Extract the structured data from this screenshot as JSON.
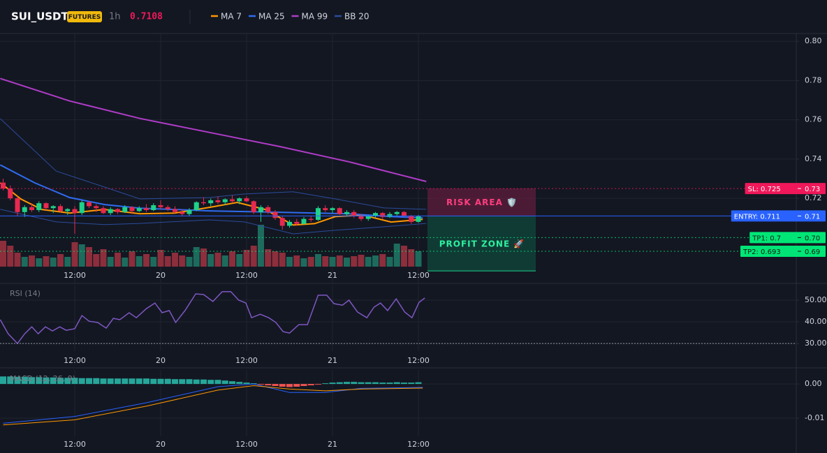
{
  "header": {
    "symbol": "SUI_USDT",
    "badge": "FUTURES",
    "interval": "1h",
    "price": 0.7108
  },
  "chart_data": [
    {
      "type": "candlestick",
      "categories": [
        null,
        null,
        null,
        null,
        null,
        null,
        null,
        null,
        null,
        null,
        "12:00",
        null,
        null,
        null,
        null,
        null,
        null,
        null,
        null,
        null,
        null,
        null,
        "20",
        null,
        null,
        null,
        null,
        null,
        null,
        null,
        null,
        null,
        null,
        null,
        "12:00",
        null,
        null,
        null,
        null,
        null,
        null,
        null,
        null,
        null,
        null,
        null,
        "21",
        null,
        null,
        null,
        null,
        null,
        null,
        null,
        null,
        null,
        null,
        null,
        "12:00"
      ],
      "ylim": [
        0.677,
        0.804
      ],
      "yticks": [
        0.72,
        0.74,
        0.76,
        0.78,
        {
          "value": 0.8,
          "label": "0.80"
        }
      ],
      "grid": true,
      "up_color": "#1fd18a",
      "down_color": "#e8294f",
      "volume_up_color": "#1d6b5d",
      "volume_down_color": "#8c2e3c",
      "candles": {
        "open": [
          0.728,
          0.725,
          0.72,
          0.713,
          0.7155,
          0.714,
          0.7175,
          0.715,
          0.716,
          0.7135,
          0.7145,
          0.7125,
          0.718,
          0.716,
          0.715,
          0.7125,
          0.7145,
          0.713,
          0.7155,
          0.7135,
          0.715,
          0.714,
          0.7165,
          0.7155,
          0.7145,
          0.713,
          0.712,
          0.714,
          0.718,
          0.7175,
          0.719,
          0.718,
          0.7195,
          0.7185,
          0.72,
          0.7185,
          0.713,
          0.7155,
          0.713,
          0.71,
          0.706,
          0.708,
          0.707,
          0.7095,
          0.709,
          0.715,
          0.714,
          0.715,
          0.712,
          0.713,
          0.711,
          0.7095,
          0.711,
          0.7125,
          0.7105,
          0.712,
          0.713,
          0.711,
          0.708
        ],
        "high": [
          0.73,
          0.7265,
          0.721,
          0.7165,
          0.7175,
          0.7185,
          0.718,
          0.7165,
          0.717,
          0.715,
          0.716,
          0.719,
          0.7185,
          0.717,
          0.716,
          0.7155,
          0.715,
          0.7165,
          0.716,
          0.716,
          0.717,
          0.7175,
          0.719,
          0.7165,
          0.716,
          0.7145,
          0.715,
          0.7185,
          0.7205,
          0.72,
          0.721,
          0.72,
          0.7215,
          0.7205,
          0.721,
          0.719,
          0.7165,
          0.7165,
          0.714,
          0.711,
          0.709,
          0.7095,
          0.7105,
          0.711,
          0.716,
          0.7165,
          0.7155,
          0.7155,
          0.714,
          0.714,
          0.712,
          0.7115,
          0.713,
          0.713,
          0.713,
          0.7135,
          0.7135,
          0.7115,
          0.7115
        ],
        "low": [
          0.724,
          0.719,
          0.711,
          0.7105,
          0.713,
          0.713,
          0.714,
          0.7125,
          0.713,
          0.7115,
          0.702,
          0.7115,
          0.715,
          0.713,
          0.712,
          0.7115,
          0.712,
          0.7125,
          0.712,
          0.713,
          0.713,
          0.7135,
          0.7145,
          0.7135,
          0.7125,
          0.711,
          0.711,
          0.7135,
          0.7165,
          0.716,
          0.717,
          0.7165,
          0.7175,
          0.717,
          0.718,
          0.712,
          0.708,
          0.712,
          0.709,
          0.704,
          0.705,
          0.706,
          0.7065,
          0.708,
          0.7085,
          0.713,
          0.7125,
          0.7115,
          0.711,
          0.71,
          0.7085,
          0.7085,
          0.71,
          0.7095,
          0.71,
          0.711,
          0.7105,
          0.707,
          0.7075
        ],
        "close": [
          0.725,
          0.72,
          0.713,
          0.7155,
          0.714,
          0.7175,
          0.715,
          0.716,
          0.7135,
          0.7145,
          0.7125,
          0.718,
          0.716,
          0.715,
          0.7125,
          0.7145,
          0.713,
          0.7155,
          0.7135,
          0.715,
          0.714,
          0.7165,
          0.7155,
          0.7145,
          0.713,
          0.712,
          0.714,
          0.718,
          0.7175,
          0.719,
          0.718,
          0.7195,
          0.7185,
          0.72,
          0.7185,
          0.713,
          0.7155,
          0.713,
          0.71,
          0.706,
          0.708,
          0.707,
          0.7095,
          0.709,
          0.715,
          0.714,
          0.715,
          0.712,
          0.713,
          0.711,
          0.7095,
          0.711,
          0.7125,
          0.7105,
          0.712,
          0.713,
          0.711,
          0.708,
          0.7108
        ],
        "volume": [
          37,
          30,
          20,
          14,
          16,
          12,
          15,
          13,
          18,
          14,
          35,
          32,
          28,
          18,
          25,
          14,
          20,
          13,
          22,
          15,
          18,
          14,
          24,
          15,
          20,
          16,
          14,
          28,
          26,
          18,
          20,
          16,
          22,
          18,
          24,
          30,
          60,
          25,
          22,
          20,
          14,
          16,
          12,
          14,
          18,
          15,
          14,
          16,
          13,
          15,
          17,
          14,
          16,
          18,
          14,
          33,
          30,
          25,
          22
        ]
      },
      "series": [
        {
          "name": "MA 7",
          "color": "#ff9800",
          "x": [
            -0.4,
            2.5,
            5.4,
            9.3,
            14.2,
            19.1,
            24,
            28.8,
            32.7,
            36.6,
            40.5,
            43.5,
            46.4,
            50.3,
            54.2,
            58.6
          ],
          "values": [
            0.7279,
            0.7196,
            0.7143,
            0.7125,
            0.7143,
            0.7121,
            0.7125,
            0.7154,
            0.7179,
            0.7143,
            0.7064,
            0.7071,
            0.7107,
            0.7114,
            0.7079,
            0.7093
          ]
        },
        {
          "name": "MA 25",
          "color": "#2f6cf0",
          "x": [
            -0.4,
            4.4,
            9.3,
            14.2,
            19.1,
            28.8,
            38.6,
            48.3,
            54.2,
            58.6
          ],
          "values": [
            0.737,
            0.7279,
            0.7204,
            0.7168,
            0.715,
            0.7136,
            0.7129,
            0.7121,
            0.7107,
            0.71
          ]
        },
        {
          "name": "MA 99",
          "color": "#b03cc8",
          "x": [
            -0.4,
            9.3,
            19.1,
            28.8,
            38.6,
            48.3,
            59.1
          ],
          "values": [
            0.7811,
            0.7696,
            0.7607,
            0.7536,
            0.7464,
            0.7386,
            0.7286
          ]
        },
        {
          "name": "BB 20",
          "color": "#2b4c9b",
          "x": [
            -0.4,
            7.4,
            14.2,
            19.1,
            28.8,
            33.7,
            40.5,
            46.4,
            53.2,
            59.1
          ],
          "values": [
            0.7606,
            0.7339,
            0.7257,
            0.7197,
            0.7204,
            0.7222,
            0.7233,
            0.7197,
            0.7151,
            0.7144
          ],
          "lower": [
            0.7144,
            0.708,
            0.7066,
            0.7072,
            0.709,
            0.708,
            0.7019,
            0.7037,
            0.7055,
            0.7072
          ]
        }
      ],
      "levels": [
        {
          "label": "SL: 0.725",
          "axis_label": "0.73",
          "value": 0.725,
          "color": "#f0185a",
          "text_color": "#ffffff",
          "style": "dotted"
        },
        {
          "label": "ENTRY: 0.711",
          "axis_label": "0.71",
          "value": 0.711,
          "color": "#2962ff",
          "text_color": "#ffffff",
          "style": "solid"
        },
        {
          "label": "TP1: 0.7",
          "axis_label": "0.70",
          "value": 0.7,
          "color": "#00e676",
          "text_color": "#0b1a12",
          "style": "dotted"
        },
        {
          "label": "TP2: 0.693",
          "axis_label": "0.69",
          "value": 0.693,
          "color": "#00e676",
          "text_color": "#0b1a12",
          "style": "dotted"
        }
      ],
      "zones": [
        {
          "label": "RISK AREA 🛡️",
          "from": 0.725,
          "to": 0.711,
          "color": "#7a1f45",
          "text_color": "#ff3d7f"
        },
        {
          "label": "PROFIT ZONE 🚀",
          "from": 0.711,
          "to": 0.683,
          "color": "#0f5a46",
          "text_color": "#2ef0a0"
        }
      ]
    },
    {
      "type": "line",
      "title": "RSI (14)",
      "categories": [
        null,
        null,
        null,
        null,
        null,
        null,
        null,
        null,
        null,
        null,
        "12:00",
        null,
        null,
        null,
        null,
        null,
        null,
        null,
        null,
        null,
        null,
        null,
        "20",
        null,
        null,
        null,
        null,
        null,
        null,
        null,
        null,
        null,
        null,
        null,
        "12:00",
        null,
        null,
        null,
        null,
        null,
        null,
        null,
        null,
        null,
        null,
        null,
        "21",
        null,
        null,
        null,
        null,
        null,
        null,
        null,
        null,
        null,
        null,
        null,
        "12:00"
      ],
      "ylim": [
        26.5,
        57.1
      ],
      "yticks": [
        {
          "value": 30,
          "label": "30.00"
        },
        {
          "value": 40,
          "label": "40.00"
        },
        {
          "value": 50,
          "label": "50.00"
        }
      ],
      "grid": true,
      "hline": 30,
      "series": [
        {
          "color": "#7e57c2",
          "x": [
            -0.4,
            0.7,
            2.0,
            3.0,
            4.0,
            4.9,
            5.9,
            6.9,
            7.9,
            8.8,
            10.0,
            11.0,
            12.0,
            13.2,
            14.4,
            15.4,
            16.3,
            17.6,
            18.6,
            20.0,
            21.2,
            22.2,
            23.2,
            24.1,
            25.4,
            26.9,
            28.0,
            29.3,
            30.6,
            31.8,
            32.9,
            33.9,
            34.7,
            35.9,
            37.1,
            38.1,
            39.1,
            40.0,
            41.3,
            42.5,
            44.0,
            45.2,
            46.2,
            47.4,
            48.3,
            49.5,
            50.8,
            51.8,
            52.7,
            53.7,
            54.9,
            56.1,
            57.1,
            58.1,
            58.9
          ],
          "values": [
            41.0,
            34.5,
            30.0,
            34.5,
            37.7,
            34.5,
            37.7,
            35.8,
            37.7,
            36.1,
            36.8,
            42.9,
            40.3,
            39.7,
            37.1,
            41.6,
            41.0,
            44.2,
            41.9,
            46.1,
            48.7,
            44.2,
            45.2,
            39.7,
            45.2,
            52.9,
            52.6,
            49.4,
            53.9,
            53.9,
            50.0,
            48.7,
            41.9,
            43.5,
            41.9,
            39.7,
            35.5,
            34.8,
            38.7,
            38.7,
            52.3,
            52.3,
            48.4,
            47.7,
            50.0,
            44.5,
            41.9,
            46.8,
            48.7,
            45.2,
            50.6,
            44.5,
            41.9,
            49.0,
            51.0
          ]
        }
      ]
    },
    {
      "type": "macd",
      "title": "MACD (12, 26, 9)",
      "categories": [
        null,
        null,
        null,
        null,
        null,
        null,
        null,
        null,
        null,
        null,
        "12:00",
        null,
        null,
        null,
        null,
        null,
        null,
        null,
        null,
        null,
        null,
        null,
        "20",
        null,
        null,
        null,
        null,
        null,
        null,
        null,
        null,
        null,
        null,
        null,
        "12:00",
        null,
        null,
        null,
        null,
        null,
        null,
        null,
        null,
        null,
        null,
        null,
        "21",
        null,
        null,
        null,
        null,
        null,
        null,
        null,
        null,
        null,
        null,
        null,
        "12:00"
      ],
      "ylim": [
        -0.0153,
        0.0041
      ],
      "yticks": [
        {
          "value": -0.01,
          "label": "-0.01"
        },
        {
          "value": 0,
          "label": "0.00"
        }
      ],
      "grid": true,
      "histogram": {
        "up_color": "#26a69a",
        "down_color": "#ef5350",
        "values": [
          0.0022,
          0.0022,
          0.0021,
          0.0021,
          0.002,
          0.002,
          0.0019,
          0.0019,
          0.0018,
          0.0018,
          0.0018,
          0.0017,
          0.0017,
          0.0017,
          0.0016,
          0.0016,
          0.0016,
          0.0016,
          0.0016,
          0.0016,
          0.0016,
          0.0015,
          0.0015,
          0.0015,
          0.0014,
          0.0014,
          0.0014,
          0.0013,
          0.0013,
          0.0012,
          0.0012,
          0.001,
          0.0008,
          0.0006,
          0.0004,
          0.0002,
          -0.0002,
          -0.0004,
          -0.0006,
          -0.0008,
          -0.0009,
          -0.0008,
          -0.0006,
          -0.0004,
          -0.0002,
          0.0002,
          0.0004,
          0.0005,
          0.0006,
          0.0006,
          0.0005,
          0.0005,
          0.0005,
          0.0004,
          0.0004,
          0.0005,
          0.0004,
          0.0004,
          0.0005
        ]
      },
      "series": [
        {
          "color": "#2962ff",
          "x": [
            0,
            10,
            20,
            30,
            35,
            40,
            45,
            50,
            58.6
          ],
          "values": [
            -0.0115,
            -0.0095,
            -0.0055,
            -0.0008,
            0,
            -0.0025,
            -0.0025,
            -0.0013,
            -0.001
          ]
        },
        {
          "color": "#ff9800",
          "x": [
            0,
            10,
            20,
            30,
            35,
            40,
            45,
            50,
            58.6
          ],
          "values": [
            -0.012,
            -0.0105,
            -0.0065,
            -0.0018,
            -0.0005,
            -0.0015,
            -0.002,
            -0.0015,
            -0.0012
          ]
        }
      ]
    }
  ]
}
